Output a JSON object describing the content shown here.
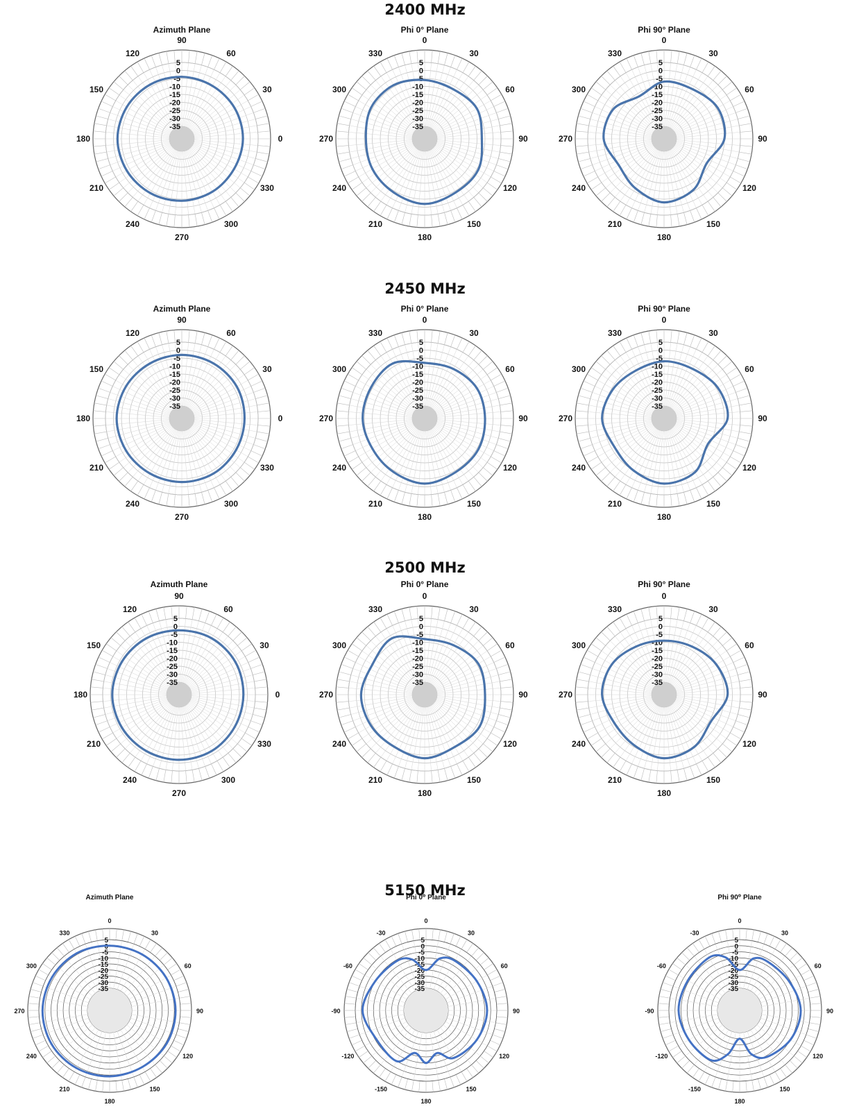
{
  "groups": [
    {
      "title": "2400 MHz",
      "kind": "normal",
      "azimuth_labels": [
        "90",
        "60",
        "30",
        "0",
        "330",
        "300",
        "270",
        "240",
        "210",
        "180",
        "150",
        "120"
      ],
      "phi_labels": [
        "0",
        "30",
        "60",
        "90",
        "120",
        "150",
        "180",
        "210",
        "240",
        "270",
        "300",
        "330"
      ],
      "plot_titles": [
        "Azimuth Plane",
        "Phi 0° Plane",
        "Phi 90° Plane"
      ]
    },
    {
      "title": "2450 MHz",
      "kind": "normal",
      "azimuth_labels": [
        "90",
        "60",
        "30",
        "0",
        "330",
        "300",
        "270",
        "240",
        "210",
        "180",
        "150",
        "120"
      ],
      "phi_labels": [
        "0",
        "30",
        "60",
        "90",
        "120",
        "150",
        "180",
        "210",
        "240",
        "270",
        "300",
        "330"
      ],
      "plot_titles": [
        "Azimuth Plane",
        "Phi 0° Plane",
        "Phi 90° Plane"
      ]
    },
    {
      "title": "2500 MHz",
      "kind": "normal",
      "azimuth_labels": [
        "90",
        "60",
        "30",
        "0",
        "330",
        "300",
        "270",
        "240",
        "210",
        "180",
        "150",
        "120"
      ],
      "phi_labels": [
        "0",
        "30",
        "60",
        "90",
        "120",
        "150",
        "180",
        "210",
        "240",
        "270",
        "300",
        "330"
      ],
      "plot_titles": [
        "Azimuth Plane",
        "Phi 0° Plane",
        "Phi 90° Plane"
      ]
    },
    {
      "title": "5150 MHz",
      "kind": "small",
      "azimuth_labels": [
        "0",
        "30",
        "60",
        "90",
        "120",
        "150",
        "180",
        "210",
        "240",
        "270",
        "300",
        "330"
      ],
      "phi_labels": [
        "0",
        "30",
        "60",
        "90",
        "120",
        "150",
        "180",
        "-150",
        "-120",
        "-90",
        "-60",
        "-30"
      ],
      "plot_titles": [
        "Azimuth Plane",
        "Phi 0⁰ Plane",
        "Phi 90⁰ Plane"
      ]
    }
  ],
  "chart_data": [
    {
      "type": "polar-line",
      "title": "Azimuth Plane",
      "group": "2400 MHz",
      "rlim": [
        -35,
        5
      ],
      "r_ticks": [
        "5",
        "0",
        "-5",
        "-10",
        "-15",
        "-20",
        "-25",
        "-30",
        "-35"
      ],
      "theta": [
        0,
        30,
        60,
        90,
        120,
        150,
        180,
        210,
        240,
        270,
        300,
        330
      ],
      "r": [
        -4,
        -3.5,
        -3,
        -2.5,
        -3,
        -3.5,
        -4,
        -4.5,
        -5,
        -4.5,
        -4.5,
        -4.5
      ]
    },
    {
      "type": "polar-line",
      "title": "Phi 0° Plane",
      "group": "2400 MHz",
      "rlim": [
        -35,
        5
      ],
      "r_ticks": [
        "5",
        "0",
        "-5",
        "-10",
        "-15",
        "-20",
        "-25",
        "-30",
        "-35"
      ],
      "theta": [
        0,
        30,
        60,
        90,
        120,
        150,
        180,
        210,
        240,
        270,
        300,
        330
      ],
      "r": [
        -6,
        -7,
        -5,
        -7,
        -4,
        -4,
        -2,
        -4,
        -5,
        -6,
        -4,
        -4
      ]
    },
    {
      "type": "polar-line",
      "title": "Phi 90° Plane",
      "group": "2400 MHz",
      "rlim": [
        -35,
        5
      ],
      "r_ticks": [
        "5",
        "0",
        "-5",
        "-10",
        "-15",
        "-20",
        "-25",
        "-30",
        "-35"
      ],
      "theta": [
        0,
        30,
        60,
        90,
        120,
        150,
        180,
        210,
        240,
        270,
        300,
        330
      ],
      "r": [
        -7,
        -7,
        -4,
        -5,
        -12,
        -6,
        -3,
        -7,
        -10,
        -5,
        -6,
        -12
      ]
    },
    {
      "type": "polar-line",
      "title": "Azimuth Plane",
      "group": "2450 MHz",
      "rlim": [
        -35,
        5
      ],
      "r_ticks": [
        "5",
        "0",
        "-5",
        "-10",
        "-15",
        "-20",
        "-25",
        "-30",
        "-35"
      ],
      "theta": [
        0,
        30,
        60,
        90,
        120,
        150,
        180,
        210,
        240,
        270,
        300,
        330
      ],
      "r": [
        -3,
        -3,
        -2.5,
        -2,
        -2.5,
        -3,
        -3,
        -3,
        -3.5,
        -3.5,
        -3,
        -3
      ]
    },
    {
      "type": "polar-line",
      "title": "Phi 0° Plane",
      "group": "2450 MHz",
      "rlim": [
        -35,
        5
      ],
      "r_ticks": [
        "5",
        "0",
        "-5",
        "-10",
        "-15",
        "-20",
        "-25",
        "-30",
        "-35"
      ],
      "theta": [
        0,
        30,
        60,
        90,
        120,
        150,
        180,
        210,
        240,
        270,
        300,
        330
      ],
      "r": [
        -8,
        -7,
        -5,
        -5,
        -4,
        -4,
        -2,
        -4,
        -5,
        -4,
        -4,
        -3
      ]
    },
    {
      "type": "polar-line",
      "title": "Phi 90° Plane",
      "group": "2450 MHz",
      "rlim": [
        -35,
        5
      ],
      "r_ticks": [
        "5",
        "0",
        "-5",
        "-10",
        "-15",
        "-20",
        "-25",
        "-30",
        "-35"
      ],
      "theta": [
        0,
        30,
        60,
        90,
        120,
        150,
        180,
        210,
        240,
        270,
        300,
        330
      ],
      "r": [
        -7,
        -7,
        -4,
        -3,
        -11,
        -4,
        -2,
        -5,
        -7,
        -4,
        -6,
        -8
      ]
    },
    {
      "type": "polar-line",
      "title": "Azimuth Plane",
      "group": "2500 MHz",
      "rlim": [
        -35,
        5
      ],
      "r_ticks": [
        "5",
        "0",
        "-5",
        "-10",
        "-15",
        "-20",
        "-25",
        "-30",
        "-35"
      ],
      "theta": [
        0,
        30,
        60,
        90,
        120,
        150,
        180,
        210,
        240,
        270,
        300,
        330
      ],
      "r": [
        -2.5,
        -2,
        -1.5,
        -1,
        -1.5,
        -2,
        -2,
        -2,
        -2.5,
        -2.5,
        -2,
        -2
      ]
    },
    {
      "type": "polar-line",
      "title": "Phi 0° Plane",
      "group": "2500 MHz",
      "rlim": [
        -35,
        5
      ],
      "r_ticks": [
        "5",
        "0",
        "-5",
        "-10",
        "-15",
        "-20",
        "-25",
        "-30",
        "-35"
      ],
      "theta": [
        0,
        30,
        60,
        90,
        120,
        150,
        180,
        210,
        240,
        270,
        300,
        330
      ],
      "r": [
        -8,
        -7,
        -4,
        -5,
        -3,
        -5,
        -3,
        -5,
        -4,
        -3,
        -5,
        -2
      ]
    },
    {
      "type": "polar-line",
      "title": "Phi 90° Plane",
      "group": "2500 MHz",
      "rlim": [
        -35,
        5
      ],
      "r_ticks": [
        "5",
        "0",
        "-5",
        "-10",
        "-15",
        "-20",
        "-25",
        "-30",
        "-35"
      ],
      "theta": [
        0,
        30,
        60,
        90,
        120,
        150,
        180,
        210,
        240,
        270,
        300,
        330
      ],
      "r": [
        -9,
        -8,
        -5,
        -3,
        -9,
        -5,
        -3,
        -6,
        -7,
        -4,
        -5,
        -8
      ]
    },
    {
      "type": "polar-line",
      "title": "Azimuth Plane",
      "group": "5150 MHz",
      "rlim": [
        -35,
        5
      ],
      "r_ticks": [
        "5",
        "0",
        "-5",
        "-10",
        "-15",
        "-20",
        "-25",
        "-30",
        "-35"
      ],
      "theta": [
        0,
        30,
        60,
        90,
        120,
        150,
        180,
        210,
        240,
        270,
        300,
        330
      ],
      "r": [
        0,
        0,
        0.5,
        1,
        1,
        0.5,
        1,
        1.5,
        2,
        2,
        1.5,
        1
      ]
    },
    {
      "type": "polar-line",
      "title": "Phi 0⁰ Plane",
      "group": "5150 MHz",
      "rlim": [
        -35,
        5
      ],
      "r_ticks": [
        "5",
        "0",
        "-5",
        "-10",
        "-15",
        "-20",
        "-25",
        "-30",
        "-35"
      ],
      "theta": [
        0,
        15,
        30,
        60,
        90,
        120,
        150,
        165,
        180,
        195,
        210,
        240,
        270,
        300,
        330,
        345
      ],
      "r": [
        -20,
        -9,
        -6,
        -5,
        -3,
        -5,
        -8,
        -17,
        -10,
        -17,
        -5,
        -6,
        -1,
        -5,
        -6,
        -10
      ]
    },
    {
      "type": "polar-line",
      "title": "Phi 90⁰ Plane",
      "group": "5150 MHz",
      "rlim": [
        -35,
        5
      ],
      "r_ticks": [
        "5",
        "0",
        "-5",
        "-10",
        "-15",
        "-20",
        "-25",
        "-30",
        "-35"
      ],
      "theta": [
        0,
        15,
        30,
        60,
        90,
        120,
        150,
        165,
        180,
        195,
        210,
        240,
        270,
        300,
        330,
        345
      ],
      "r": [
        -20,
        -9,
        -7,
        -6,
        -3,
        -5,
        -9,
        -16,
        -30,
        -16,
        -6,
        -5,
        -3,
        -4,
        -3,
        -8
      ]
    }
  ]
}
